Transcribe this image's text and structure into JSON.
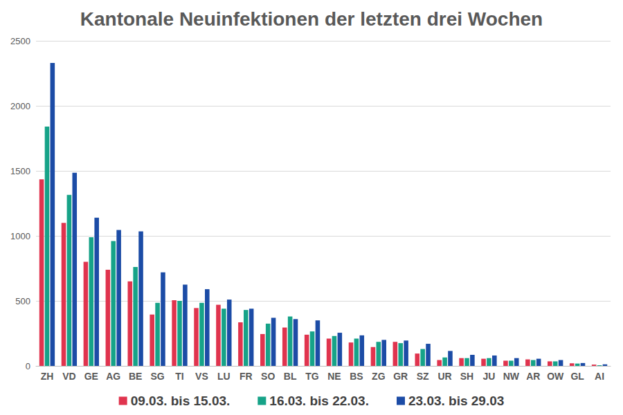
{
  "chart_data": {
    "type": "bar",
    "title": "Kantonale Neuinfektionen der letzten drei Wochen",
    "categories": [
      "ZH",
      "VD",
      "GE",
      "AG",
      "BE",
      "SG",
      "TI",
      "VS",
      "LU",
      "FR",
      "SO",
      "BL",
      "TG",
      "NE",
      "BS",
      "ZG",
      "GR",
      "SZ",
      "UR",
      "SH",
      "JU",
      "NW",
      "AR",
      "OW",
      "GL",
      "AI"
    ],
    "series": [
      {
        "name": "09.03. bis 15.03.",
        "color": "#e0344e",
        "values": [
          1435,
          1100,
          800,
          740,
          650,
          395,
          505,
          445,
          470,
          335,
          245,
          295,
          240,
          210,
          180,
          145,
          185,
          95,
          45,
          60,
          55,
          40,
          50,
          35,
          20,
          10
        ]
      },
      {
        "name": "16.03. bis 22.03.",
        "color": "#16a388",
        "values": [
          1840,
          1315,
          990,
          960,
          760,
          485,
          500,
          485,
          440,
          430,
          325,
          380,
          265,
          230,
          210,
          185,
          175,
          130,
          65,
          60,
          60,
          40,
          45,
          35,
          18,
          5
        ]
      },
      {
        "name": "23.03. bis 29.03",
        "color": "#1c4ca6",
        "values": [
          2330,
          1485,
          1140,
          1045,
          1035,
          720,
          625,
          590,
          510,
          440,
          370,
          360,
          350,
          255,
          235,
          200,
          195,
          170,
          115,
          85,
          80,
          60,
          55,
          45,
          22,
          12
        ]
      }
    ],
    "ylim": [
      0,
      2500
    ],
    "yticks": [
      0,
      500,
      1000,
      1500,
      2000,
      2500
    ],
    "grid": true,
    "legend": "bottom"
  }
}
